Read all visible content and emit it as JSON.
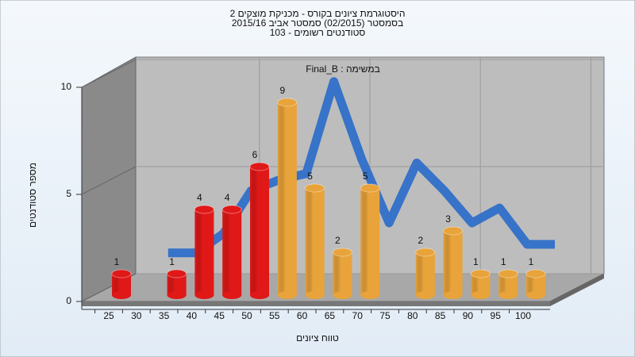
{
  "chart_data": {
    "type": "bar",
    "title_lines": [
      "היסטוגרמת ציונים בקורס - מכניקת מוצקים 2",
      "בסמסטר  (02/2015)  סמסטר אביב 2015/16",
      "סטודנטים רשומים - 103"
    ],
    "annotation": "Final_B : במשימה",
    "x_label": "טווח ציונים",
    "y_label": "מספר סטודנטים",
    "categories": [
      "25",
      "30",
      "35",
      "40",
      "45",
      "50",
      "55",
      "60",
      "65",
      "70",
      "75",
      "80",
      "85",
      "90",
      "95",
      "100"
    ],
    "values": [
      1,
      null,
      1,
      4,
      4,
      6,
      9,
      5,
      2,
      5,
      null,
      2,
      3,
      1,
      1,
      1
    ],
    "colors": [
      "#e01818",
      "#e01818",
      "#e01818",
      "#e01818",
      "#e01818",
      "#e01818",
      "#e8a33a",
      "#e8a33a",
      "#e8a33a",
      "#e8a33a",
      "#e8a33a",
      "#e8a33a",
      "#e8a33a",
      "#e8a33a",
      "#e8a33a",
      "#e8a33a"
    ],
    "trend": {
      "color": "#2f6fc8",
      "values": [
        null,
        1.6,
        1.6,
        2.5,
        4.5,
        5,
        5.3,
        9.6,
        6,
        3,
        5.8,
        4.5,
        3,
        3.7,
        2,
        2
      ]
    },
    "ylim": [
      0,
      10
    ],
    "yticks": [
      0,
      5,
      10
    ],
    "grid": true
  }
}
